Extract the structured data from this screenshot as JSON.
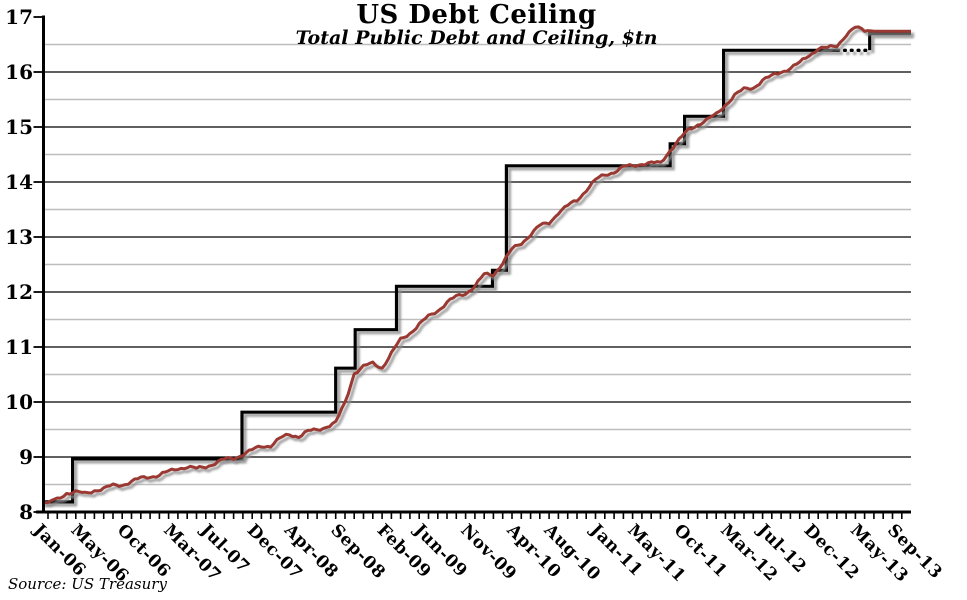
{
  "chart_data": {
    "type": "line",
    "title": "US Debt Ceiling",
    "subtitle": "Total Public Debt and Ceiling, $tn",
    "source_note": "Source: US Treasury",
    "x_axis": {
      "minor_tick_every_months": 1,
      "tick_labels": [
        {
          "label": "Jan-06",
          "m": 0
        },
        {
          "label": "May-06",
          "m": 4
        },
        {
          "label": "Oct-06",
          "m": 9
        },
        {
          "label": "Mar-07",
          "m": 14
        },
        {
          "label": "Jul-07",
          "m": 18
        },
        {
          "label": "Dec-07",
          "m": 23
        },
        {
          "label": "Apr-08",
          "m": 27
        },
        {
          "label": "Sep-08",
          "m": 32
        },
        {
          "label": "Feb-09",
          "m": 37
        },
        {
          "label": "Jun-09",
          "m": 41
        },
        {
          "label": "Nov-09",
          "m": 46
        },
        {
          "label": "Apr-10",
          "m": 51
        },
        {
          "label": "Aug-10",
          "m": 55
        },
        {
          "label": "Jan-11",
          "m": 60
        },
        {
          "label": "May-11",
          "m": 64
        },
        {
          "label": "Oct-11",
          "m": 69
        },
        {
          "label": "Mar-12",
          "m": 74
        },
        {
          "label": "Jul-12",
          "m": 78
        },
        {
          "label": "Dec-12",
          "m": 83
        },
        {
          "label": "May-13",
          "m": 88
        },
        {
          "label": "Sep-13",
          "m": 92
        }
      ]
    },
    "y_axis": {
      "min": 8,
      "max": 17,
      "ticks": [
        8,
        9,
        10,
        11,
        12,
        13,
        14,
        15,
        16,
        17
      ],
      "minor_gridline_step": 0.5
    },
    "grid": {
      "major_color": "#000000",
      "minor_color": "#bdbdbd"
    },
    "series": [
      {
        "name": "Debt Ceiling",
        "type": "step",
        "color": "#000000",
        "steps": [
          {
            "m": 0,
            "value": 8.184
          },
          {
            "m": 2.65,
            "value": 8.965
          },
          {
            "m": 20.9,
            "value": 9.815
          },
          {
            "m": 31.0,
            "value": 10.615
          },
          {
            "m": 33.1,
            "value": 11.315
          },
          {
            "m": 37.55,
            "value": 12.104
          },
          {
            "m": 47.9,
            "value": 12.394
          },
          {
            "m": 49.4,
            "value": 14.294
          },
          {
            "m": 67.05,
            "value": 14.694
          },
          {
            "m": 68.6,
            "value": 15.194
          },
          {
            "m": 72.8,
            "value": 16.394
          },
          {
            "m": 88.55,
            "value": 16.699
          }
        ],
        "suspension_dotted": {
          "from_m": 85.1,
          "to_m": 88.55,
          "value": 16.394
        }
      },
      {
        "name": "Total Public Debt",
        "type": "line",
        "color": "#9a3732",
        "start_month": "Jan-06",
        "monthly_values": [
          8.17,
          8.23,
          8.35,
          8.36,
          8.33,
          8.4,
          8.42,
          8.48,
          8.5,
          8.55,
          8.61,
          8.65,
          8.67,
          8.73,
          8.8,
          8.82,
          8.78,
          8.83,
          8.89,
          8.95,
          8.98,
          9.05,
          9.12,
          9.2,
          9.21,
          9.33,
          9.41,
          9.38,
          9.46,
          9.49,
          9.56,
          9.62,
          9.98,
          10.53,
          10.64,
          10.7,
          10.63,
          10.88,
          11.13,
          11.26,
          11.41,
          11.55,
          11.67,
          11.81,
          11.91,
          11.98,
          12.11,
          12.31,
          12.32,
          12.53,
          12.77,
          12.89,
          13.05,
          13.2,
          13.26,
          13.45,
          13.56,
          13.67,
          13.86,
          14.03,
          14.13,
          14.19,
          14.27,
          14.29,
          14.34,
          14.34,
          14.34,
          14.58,
          14.76,
          14.94,
          15.05,
          15.13,
          15.22,
          15.41,
          15.58,
          15.68,
          15.72,
          15.85,
          15.92,
          16.01,
          16.07,
          16.16,
          16.31,
          16.43,
          16.43,
          16.48,
          16.68,
          16.8,
          16.76,
          16.74,
          16.74,
          16.74,
          16.74,
          16.74
        ]
      }
    ]
  }
}
